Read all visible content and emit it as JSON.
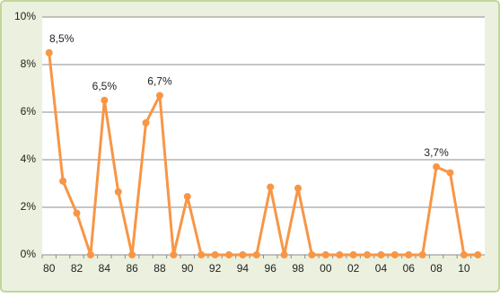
{
  "chart_data": {
    "type": "line",
    "categories": [
      "80",
      null,
      "82",
      null,
      "84",
      null,
      "86",
      null,
      "88",
      null,
      "90",
      null,
      "92",
      null,
      "94",
      null,
      "96",
      null,
      "98",
      null,
      "00",
      null,
      "02",
      null,
      "04",
      null,
      "06",
      null,
      "08",
      null,
      "10",
      null
    ],
    "values": [
      8.5,
      3.1,
      1.75,
      0,
      6.5,
      2.65,
      0,
      5.55,
      6.7,
      0,
      2.45,
      0,
      0,
      0,
      0,
      0,
      2.85,
      0,
      2.8,
      0,
      0,
      0,
      0,
      0,
      0,
      0,
      0,
      0,
      3.7,
      3.45,
      0,
      0
    ],
    "value_labels": [
      "8,5%",
      null,
      null,
      null,
      "6,5%",
      null,
      null,
      null,
      "6,7%",
      null,
      null,
      null,
      null,
      null,
      null,
      null,
      null,
      null,
      null,
      null,
      null,
      null,
      null,
      null,
      null,
      null,
      null,
      null,
      "3,7%",
      null,
      null,
      null
    ],
    "color": "#f79646",
    "ylim": [
      0,
      10
    ],
    "yticks": [
      {
        "value": 0,
        "label": "0%"
      },
      {
        "value": 2,
        "label": "2%"
      },
      {
        "value": 4,
        "label": "4%"
      },
      {
        "value": 6,
        "label": "6%"
      },
      {
        "value": 8,
        "label": "8%"
      },
      {
        "value": 10,
        "label": "10%"
      }
    ],
    "grid": true
  }
}
